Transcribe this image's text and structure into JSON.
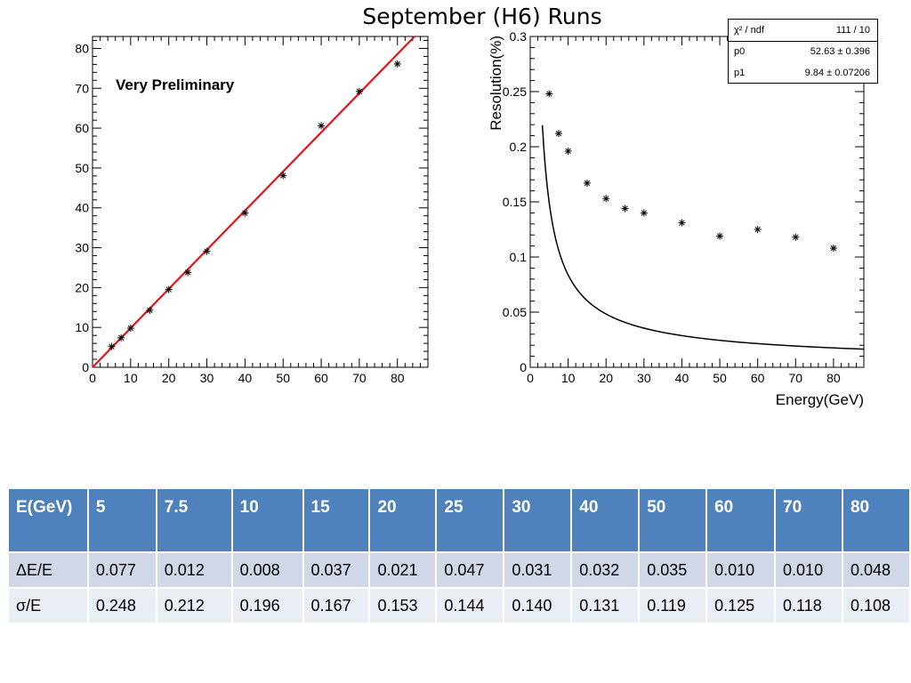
{
  "slide": {
    "title": "September (H6) Runs"
  },
  "chart_data": [
    {
      "type": "scatter",
      "title": "",
      "annotation": "Very Preliminary",
      "xlabel": "",
      "ylabel": "",
      "xlim": [
        0,
        88
      ],
      "ylim": [
        0,
        83
      ],
      "xticks": [
        0,
        10,
        20,
        30,
        40,
        50,
        60,
        70,
        80
      ],
      "yticks": [
        0,
        10,
        20,
        30,
        40,
        50,
        60,
        70,
        80
      ],
      "grid": false,
      "series": [
        {
          "marker": "asterisk",
          "color": "#000000",
          "points": [
            [
              5,
              5.2
            ],
            [
              7.5,
              7.4
            ],
            [
              10,
              9.8
            ],
            [
              15,
              14.3
            ],
            [
              20,
              19.5
            ],
            [
              25,
              23.8
            ],
            [
              30,
              29.1
            ],
            [
              40,
              38.7
            ],
            [
              50,
              48.1
            ],
            [
              60,
              60.6
            ],
            [
              70,
              69.2
            ],
            [
              80,
              76.1
            ]
          ]
        }
      ],
      "fit_line": {
        "color": "#e8101a",
        "x": [
          0,
          84.5
        ],
        "y": [
          0,
          83
        ]
      }
    },
    {
      "type": "scatter",
      "title": "",
      "xlabel": "Energy(GeV)",
      "ylabel": "Resolution(%)",
      "xlim": [
        0,
        88
      ],
      "ylim": [
        0,
        0.3
      ],
      "xticks": [
        0,
        10,
        20,
        30,
        40,
        50,
        60,
        70,
        80
      ],
      "yticks": [
        0,
        0.05,
        0.1,
        0.15,
        0.2,
        0.25,
        0.3
      ],
      "ytick_labels": [
        "0",
        "0.05",
        "0.1",
        "0.15",
        "0.2",
        "0.25",
        "0.3"
      ],
      "grid": false,
      "series": [
        {
          "marker": "asterisk",
          "color": "#000000",
          "points": [
            [
              5,
              0.248
            ],
            [
              7.5,
              0.212
            ],
            [
              10,
              0.196
            ],
            [
              15,
              0.167
            ],
            [
              20,
              0.153
            ],
            [
              25,
              0.144
            ],
            [
              30,
              0.14
            ],
            [
              40,
              0.131
            ],
            [
              50,
              0.119
            ],
            [
              60,
              0.125
            ],
            [
              70,
              0.118
            ],
            [
              80,
              0.108
            ]
          ]
        }
      ],
      "fit_curve": {
        "color": "#000000",
        "model": "p0/E + p1/sqrt(E) (percent)",
        "p0": 52.63,
        "p1": 9.84,
        "x_range": [
          3.2,
          88
        ]
      },
      "stats_box": {
        "rows": [
          {
            "name": "χ² / ndf",
            "value": "111 / 10"
          },
          {
            "name": "p0",
            "value": "52.63 ± 0.396"
          },
          {
            "name": "p1",
            "value": "9.84 ± 0.07206"
          }
        ]
      }
    }
  ],
  "table": {
    "header": [
      "E(GeV)",
      "5",
      "7.5",
      "10",
      "15",
      "20",
      "25",
      "30",
      "40",
      "50",
      "60",
      "70",
      "80"
    ],
    "rows": [
      [
        "ΔE/E",
        "0.077",
        "0.012",
        "0.008",
        "0.037",
        "0.021",
        "0.047",
        "0.031",
        "0.032",
        "0.035",
        "0.010",
        "0.010",
        "0.048"
      ],
      [
        "σ/E",
        "0.248",
        "0.212",
        "0.196",
        "0.167",
        "0.153",
        "0.144",
        "0.140",
        "0.131",
        "0.119",
        "0.125",
        "0.118",
        "0.108"
      ]
    ]
  }
}
